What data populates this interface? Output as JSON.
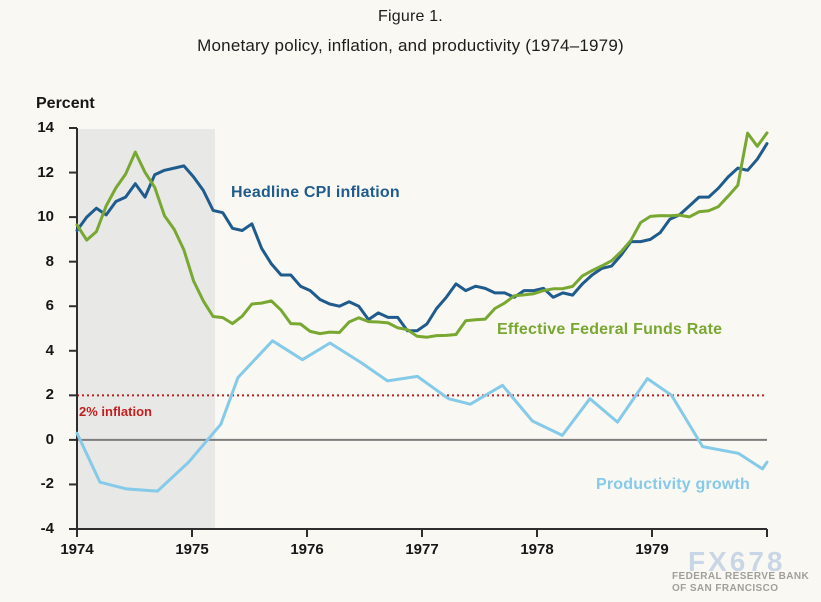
{
  "title": {
    "line1": "Figure 1.",
    "line2": "Monetary policy, inflation, and productivity (1974–1979)"
  },
  "watermark": {
    "logo": "FX678",
    "org_line1": "FEDERAL RESERVE BANK",
    "org_line2": "OF SAN FRANCISCO"
  },
  "chart_data": {
    "type": "line",
    "title": "Monetary policy, inflation, and productivity (1974–1979)",
    "ylabel": "Percent",
    "xlabel": "",
    "ylim": [
      -4,
      14
    ],
    "xlim": [
      1974,
      1980
    ],
    "grid": false,
    "legend_position": "inline-annotations",
    "y_ticks": [
      14,
      12,
      10,
      8,
      6,
      4,
      2,
      0,
      -2,
      -4
    ],
    "x_ticks": [
      "1974",
      "1975",
      "1976",
      "1977",
      "1978",
      "1979"
    ],
    "recession_shading": {
      "from_year": 1974.0,
      "to_year": 1975.2,
      "color": "#e8e8e7"
    },
    "reference_lines": [
      {
        "label": "2% inflation",
        "value": 2,
        "color": "#c11f1f",
        "style": "dotted"
      },
      {
        "label": "",
        "value": 0,
        "color": "#7d7d7d",
        "style": "solid"
      }
    ],
    "series": [
      {
        "name": "Headline CPI inflation",
        "color": "#1f5c8d",
        "frequency": "monthly",
        "start": "1974-01",
        "end": "1979-12",
        "values": [
          9.4,
          10.0,
          10.4,
          10.1,
          10.7,
          10.9,
          11.5,
          10.9,
          11.9,
          12.1,
          12.2,
          12.3,
          11.8,
          11.2,
          10.3,
          10.2,
          9.5,
          9.4,
          9.7,
          8.6,
          7.9,
          7.4,
          7.4,
          6.9,
          6.7,
          6.3,
          6.1,
          6.0,
          6.2,
          6.0,
          5.4,
          5.7,
          5.5,
          5.5,
          4.9,
          4.9,
          5.2,
          5.9,
          6.4,
          7.0,
          6.7,
          6.9,
          6.8,
          6.6,
          6.6,
          6.4,
          6.7,
          6.7,
          6.8,
          6.4,
          6.6,
          6.5,
          7.0,
          7.4,
          7.7,
          7.8,
          8.3,
          8.9,
          8.9,
          9.0,
          9.3,
          9.9,
          10.1,
          10.5,
          10.9,
          10.9,
          11.3,
          11.8,
          12.2,
          12.1,
          12.6,
          13.3
        ]
      },
      {
        "name": "Effective Federal Funds Rate",
        "color": "#79a832",
        "frequency": "monthly",
        "start": "1974-01",
        "end": "1979-12",
        "values": [
          9.65,
          8.97,
          9.35,
          10.51,
          11.31,
          11.93,
          12.92,
          12.01,
          11.34,
          10.06,
          9.45,
          8.53,
          7.13,
          6.24,
          5.54,
          5.49,
          5.22,
          5.55,
          6.1,
          6.14,
          6.24,
          5.82,
          5.22,
          5.2,
          4.87,
          4.77,
          4.84,
          4.82,
          5.29,
          5.48,
          5.31,
          5.29,
          5.25,
          5.03,
          4.95,
          4.65,
          4.61,
          4.68,
          4.69,
          4.73,
          5.35,
          5.39,
          5.42,
          5.9,
          6.14,
          6.47,
          6.51,
          6.56,
          6.7,
          6.78,
          6.79,
          6.89,
          7.36,
          7.6,
          7.81,
          8.04,
          8.45,
          8.96,
          9.76,
          10.03,
          10.07,
          10.06,
          10.09,
          10.01,
          10.24,
          10.29,
          10.47,
          10.94,
          11.43,
          13.77,
          13.18,
          13.78
        ]
      },
      {
        "name": "Productivity growth",
        "color": "#85cae8",
        "frequency": "quarterly",
        "points": [
          [
            1974.0,
            0.3
          ],
          [
            1974.2,
            -1.9
          ],
          [
            1974.43,
            -2.2
          ],
          [
            1974.7,
            -2.3
          ],
          [
            1974.97,
            -1.0
          ],
          [
            1975.25,
            0.7
          ],
          [
            1975.4,
            2.8
          ],
          [
            1975.7,
            4.45
          ],
          [
            1975.96,
            3.6
          ],
          [
            1976.2,
            4.35
          ],
          [
            1976.46,
            3.5
          ],
          [
            1976.7,
            2.65
          ],
          [
            1976.96,
            2.85
          ],
          [
            1977.23,
            1.85
          ],
          [
            1977.42,
            1.6
          ],
          [
            1977.7,
            2.45
          ],
          [
            1977.96,
            0.85
          ],
          [
            1978.22,
            0.2
          ],
          [
            1978.46,
            1.85
          ],
          [
            1978.7,
            0.8
          ],
          [
            1978.96,
            2.75
          ],
          [
            1979.17,
            2.0
          ],
          [
            1979.44,
            -0.3
          ],
          [
            1979.75,
            -0.6
          ],
          [
            1979.96,
            -1.3
          ],
          [
            1980.0,
            -1.0
          ]
        ]
      }
    ]
  }
}
